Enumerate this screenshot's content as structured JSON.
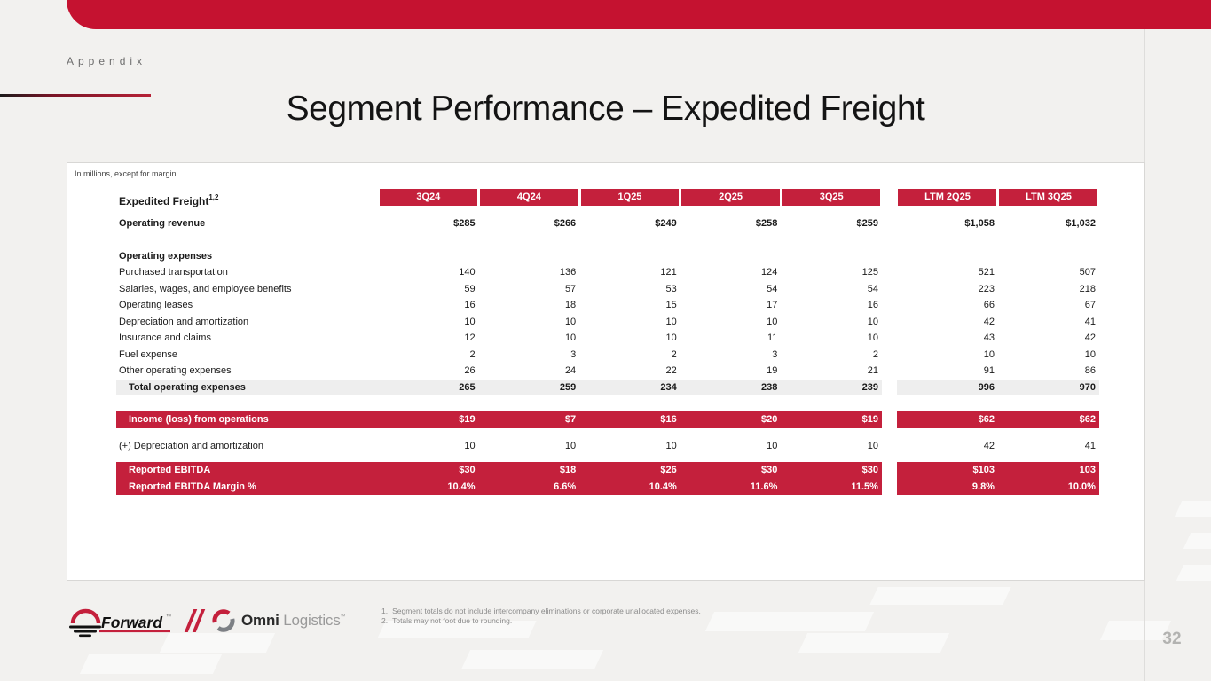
{
  "slide": {
    "eyebrow": "Appendix",
    "title": "Segment Performance – Expedited Freight",
    "page_number": "32"
  },
  "table": {
    "note": "In millions, except for margin",
    "row_header": {
      "label": "Expedited Freight",
      "superscript": "1,2"
    },
    "columns": [
      "3Q24",
      "4Q24",
      "1Q25",
      "2Q25",
      "3Q25",
      "LTM 2Q25",
      "LTM 3Q25"
    ],
    "rows": [
      {
        "type": "revenue",
        "label": "Operating revenue",
        "values": [
          "$285",
          "$266",
          "$249",
          "$258",
          "$259",
          "$1,058",
          "$1,032"
        ]
      },
      {
        "type": "section",
        "label": "Operating expenses",
        "values": [
          "",
          "",
          "",
          "",
          "",
          "",
          ""
        ]
      },
      {
        "type": "expense",
        "label": "Purchased transportation",
        "values": [
          "140",
          "136",
          "121",
          "124",
          "125",
          "521",
          "507"
        ]
      },
      {
        "type": "expense",
        "label": "Salaries, wages, and employee benefits",
        "values": [
          "59",
          "57",
          "53",
          "54",
          "54",
          "223",
          "218"
        ]
      },
      {
        "type": "expense",
        "label": "Operating leases",
        "values": [
          "16",
          "18",
          "15",
          "17",
          "16",
          "66",
          "67"
        ]
      },
      {
        "type": "expense",
        "label": "Depreciation and amortization",
        "values": [
          "10",
          "10",
          "10",
          "10",
          "10",
          "42",
          "41"
        ]
      },
      {
        "type": "expense",
        "label": "Insurance and claims",
        "values": [
          "12",
          "10",
          "10",
          "11",
          "10",
          "43",
          "42"
        ]
      },
      {
        "type": "expense",
        "label": "Fuel expense",
        "values": [
          "2",
          "3",
          "2",
          "3",
          "2",
          "10",
          "10"
        ]
      },
      {
        "type": "expense",
        "label": "Other operating expenses",
        "values": [
          "26",
          "24",
          "22",
          "19",
          "21",
          "91",
          "86"
        ]
      },
      {
        "type": "total",
        "label": "Total operating expenses",
        "values": [
          "265",
          "259",
          "234",
          "238",
          "239",
          "996",
          "970"
        ]
      },
      {
        "type": "income",
        "label": "Income (loss) from operations",
        "values": [
          "$19",
          "$7",
          "$16",
          "$20",
          "$19",
          "$62",
          "$62"
        ]
      },
      {
        "type": "adjustment",
        "label": "(+) Depreciation and amortization",
        "values": [
          "10",
          "10",
          "10",
          "10",
          "10",
          "42",
          "41"
        ]
      },
      {
        "type": "ebitda",
        "label": "Reported EBITDA",
        "values": [
          "$30",
          "$18",
          "$26",
          "$30",
          "$30",
          "$103",
          "103"
        ]
      },
      {
        "type": "ebitda-margin",
        "label": "Reported EBITDA Margin %",
        "values": [
          "10.4%",
          "6.6%",
          "10.4%",
          "11.6%",
          "11.5%",
          "9.8%",
          "10.0%"
        ]
      }
    ]
  },
  "footnotes": [
    {
      "num": "1.",
      "text": "Segment totals do not include intercompany eliminations or corporate unallocated expenses."
    },
    {
      "num": "2.",
      "text": "Totals may not foot due to rounding."
    }
  ],
  "logos": {
    "forward": {
      "word": "Forward",
      "mark": "™"
    },
    "omni": {
      "word_bold": "Omni",
      "word_light": "Logistics",
      "mark": "™"
    }
  },
  "colors": {
    "top_bar_red": "#c51230",
    "brand_red": "#c4203c",
    "total_band_gray": "#eeeeee",
    "page_background": "#f2f1ef",
    "card_background": "#ffffff"
  }
}
